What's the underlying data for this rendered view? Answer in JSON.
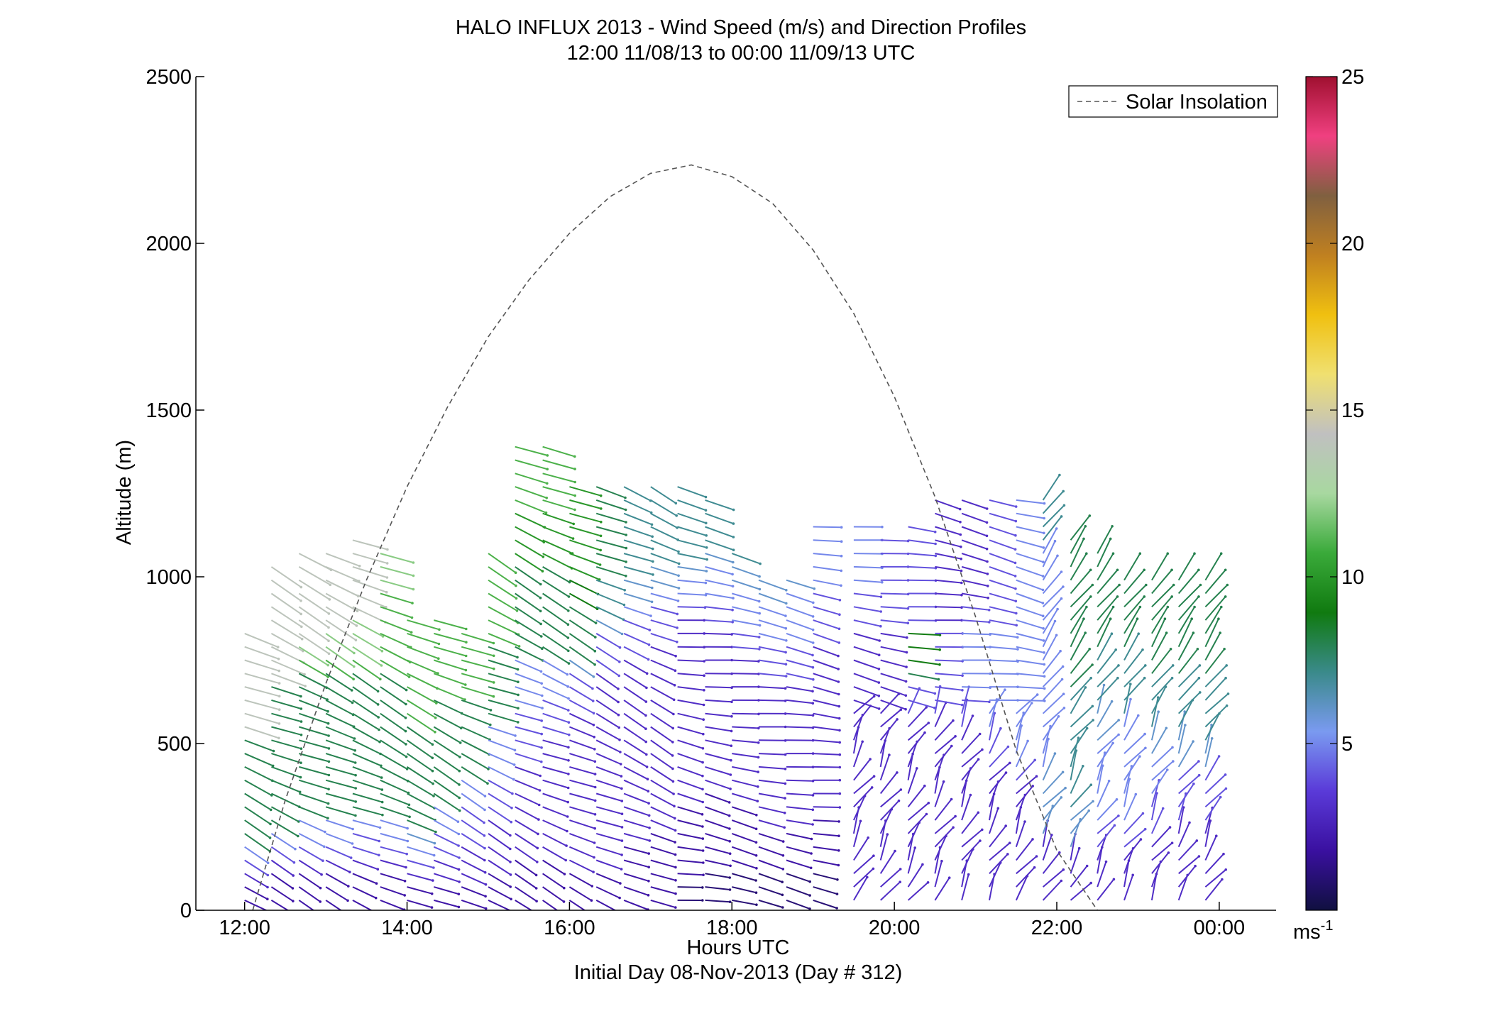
{
  "chart_data": {
    "type": "wind-barb profile",
    "title": "HALO INFLUX 2013 - Wind Speed (m/s) and Direction Profiles",
    "subtitle": "12:00 11/08/13 to 00:00 11/09/13  UTC",
    "xlabel": "Hours UTC",
    "xlabel2": "Initial Day 08-Nov-2013 (Day # 312)",
    "ylabel": "Altitude (m)",
    "xlim": [
      11.4,
      24.7
    ],
    "ylim": [
      0,
      2500
    ],
    "x_ticks": [
      12,
      14,
      16,
      18,
      20,
      22,
      24
    ],
    "x_tick_labels": [
      "12:00",
      "14:00",
      "16:00",
      "18:00",
      "20:00",
      "22:00",
      "00:00"
    ],
    "y_ticks": [
      0,
      500,
      1000,
      1500,
      2000,
      2500
    ],
    "y_tick_labels": [
      "0",
      "500",
      "1000",
      "1500",
      "2000",
      "2500"
    ],
    "legend": {
      "label": "Solar Insolation",
      "placement": "top-right",
      "line_color": "#555555",
      "line_style": "dashed"
    },
    "colorbar": {
      "range": [
        0,
        25
      ],
      "ticks": [
        5,
        10,
        15,
        20,
        25
      ],
      "tick_labels": [
        "5",
        "10",
        "15",
        "20",
        "25"
      ],
      "unit_label": "ms",
      "unit_superscript": "-1",
      "colormap": [
        "#101040",
        "#3a10a0",
        "#5a3ad8",
        "#7a9af0",
        "#3a8a8a",
        "#107a10",
        "#3aaa3a",
        "#a8d8a0",
        "#c0c0c0",
        "#f0e070",
        "#f0c010",
        "#c08020",
        "#806040",
        "#f04080",
        "#a01030"
      ]
    },
    "solar_insolation": {
      "x": [
        12.1,
        12.5,
        13.0,
        13.5,
        14.0,
        14.5,
        15.0,
        15.5,
        16.0,
        16.5,
        17.0,
        17.5,
        18.0,
        18.5,
        19.0,
        19.5,
        20.0,
        20.5,
        21.0,
        21.5,
        22.0,
        22.5,
        22.9
      ],
      "y": [
        0,
        330,
        680,
        990,
        1270,
        1510,
        1720,
        1890,
        2030,
        2140,
        2210,
        2235,
        2200,
        2120,
        1980,
        1790,
        1540,
        1240,
        880,
        480,
        180,
        0,
        -60
      ]
    },
    "profile_times": [
      12.0,
      12.33,
      12.67,
      13.0,
      13.33,
      13.67,
      14.0,
      14.33,
      14.67,
      15.0,
      15.33,
      15.67,
      16.0,
      16.33,
      16.67,
      17.0,
      17.33,
      17.67,
      18.0,
      18.33,
      18.67,
      19.0,
      19.5,
      19.83,
      20.17,
      20.5,
      20.83,
      21.17,
      21.5,
      21.83,
      22.17,
      22.5,
      22.83,
      23.17,
      23.5,
      23.83
    ],
    "profile_top_altitudes": [
      830,
      1050,
      1090,
      1100,
      1130,
      1080,
      900,
      880,
      860,
      1100,
      1400,
      1400,
      1300,
      1290,
      1280,
      1270,
      1280,
      1260,
      1100,
      1010,
      1000,
      1170,
      1150,
      1140,
      1150,
      1250,
      1250,
      1230,
      1250,
      1250,
      1140,
      1070,
      1020,
      1010,
      1010,
      1010
    ],
    "wind_speed_ms": [
      [
        2,
        2,
        3,
        4,
        5,
        8,
        8,
        8,
        8,
        8,
        8,
        8,
        8,
        8,
        14,
        14,
        14,
        14,
        14,
        14,
        14,
        14,
        14
      ],
      [
        2,
        2,
        3,
        4,
        5,
        8,
        8,
        8,
        8,
        8,
        8,
        8,
        8,
        8,
        14,
        14,
        14,
        14,
        14,
        14,
        14,
        14,
        14
      ],
      [
        2,
        2,
        3,
        4,
        5,
        8,
        8,
        8,
        8,
        8,
        8,
        8,
        8,
        8,
        11,
        12,
        14,
        14,
        14,
        14,
        14,
        14,
        14
      ],
      [
        2,
        2,
        3,
        4,
        5,
        8,
        8,
        8,
        8,
        8,
        8,
        8,
        8,
        8,
        11,
        12,
        12,
        14,
        14,
        14,
        14,
        14,
        14
      ],
      [
        2,
        2,
        3,
        4,
        5,
        8,
        8,
        8,
        8,
        8,
        8,
        8,
        8,
        8,
        11,
        12,
        12,
        14,
        14,
        14,
        14,
        14,
        14
      ],
      [
        2,
        2,
        3,
        4,
        5,
        8,
        8,
        8,
        8,
        8,
        8,
        8,
        8,
        8,
        11,
        11,
        11,
        11,
        11,
        12,
        12,
        12,
        12
      ],
      [
        2,
        2,
        3,
        4,
        5,
        6,
        8,
        8,
        8,
        8,
        8,
        8,
        8,
        8,
        11,
        11,
        11,
        11,
        11,
        11,
        11,
        11,
        11
      ],
      [
        2,
        2,
        3,
        3,
        4,
        4,
        5,
        5,
        8,
        8,
        8,
        8,
        8,
        8,
        8,
        8,
        11,
        11,
        11,
        11,
        11,
        11,
        11
      ],
      [
        2,
        2,
        3,
        3,
        3,
        4,
        4,
        4,
        5,
        5,
        8,
        8,
        8,
        8,
        8,
        8,
        11,
        11,
        11,
        11,
        11,
        11,
        11
      ],
      [
        2,
        2,
        3,
        3,
        3,
        4,
        4,
        4,
        5,
        5,
        5,
        8,
        8,
        8,
        8,
        8,
        11,
        11,
        11,
        11,
        11,
        11,
        11
      ],
      [
        2,
        2,
        3,
        3,
        3,
        3,
        3,
        4,
        4,
        5,
        5,
        5,
        8,
        8,
        8,
        8,
        10,
        10,
        10,
        11,
        11,
        11,
        11
      ],
      [
        2,
        2,
        3,
        3,
        3,
        3,
        3,
        3,
        4,
        4,
        5,
        5,
        8,
        8,
        8,
        8,
        10,
        10,
        10,
        11,
        11,
        11,
        11
      ],
      [
        2,
        2,
        3,
        3,
        3,
        3,
        3,
        3,
        3,
        3,
        4,
        4,
        6,
        8,
        8,
        8,
        9,
        10,
        10,
        10,
        10,
        10,
        10
      ],
      [
        2,
        2,
        3,
        3,
        3,
        3,
        3,
        3,
        3,
        3,
        3,
        3,
        4,
        4,
        6,
        7,
        7,
        8,
        8,
        8,
        8,
        8,
        8
      ],
      [
        2,
        2,
        2,
        3,
        3,
        3,
        3,
        3,
        3,
        3,
        3,
        3,
        3,
        4,
        4,
        5,
        6,
        7,
        7,
        7,
        7,
        7,
        7
      ],
      [
        2,
        2,
        2,
        2,
        3,
        3,
        3,
        3,
        3,
        3,
        3,
        3,
        3,
        3,
        4,
        4,
        5,
        6,
        7,
        7,
        7,
        7,
        7
      ],
      [
        1,
        2,
        2,
        2,
        2,
        3,
        3,
        3,
        3,
        3,
        3,
        3,
        3,
        3,
        3,
        4,
        5,
        6,
        7,
        7,
        7,
        7,
        7
      ],
      [
        1,
        1,
        2,
        2,
        2,
        2,
        3,
        3,
        3,
        3,
        3,
        3,
        3,
        3,
        3,
        4,
        5,
        5,
        6,
        7,
        7,
        7,
        7
      ],
      [
        1,
        1,
        2,
        2,
        2,
        2,
        3,
        3,
        3,
        3,
        3,
        3,
        3,
        3,
        3,
        4,
        4,
        5,
        5,
        6,
        6,
        7,
        7
      ],
      [
        1,
        1,
        2,
        2,
        2,
        3,
        3,
        3,
        3,
        3,
        3,
        3,
        3,
        3,
        3,
        4,
        4,
        5,
        5,
        5,
        6,
        6,
        6
      ],
      [
        1,
        1,
        2,
        2,
        2,
        3,
        3,
        3,
        3,
        3,
        3,
        3,
        3,
        3,
        3,
        4,
        4,
        5,
        5,
        5,
        5,
        6,
        6
      ],
      [
        1,
        1,
        2,
        2,
        2,
        3,
        3,
        3,
        3,
        3,
        3,
        3,
        3,
        3,
        3,
        4,
        4,
        4,
        5,
        5,
        5,
        5,
        5
      ],
      [
        3,
        3,
        3,
        3,
        3,
        3,
        3,
        3,
        3,
        3,
        3,
        3,
        3,
        3,
        3,
        3,
        4,
        4,
        4,
        5,
        5,
        5,
        5
      ],
      [
        3,
        3,
        3,
        3,
        3,
        3,
        3,
        3,
        3,
        3,
        3,
        3,
        3,
        3,
        3,
        3,
        4,
        4,
        4,
        4,
        4,
        4,
        4
      ],
      [
        3,
        3,
        3,
        3,
        3,
        3,
        3,
        3,
        3,
        3,
        3,
        4,
        4,
        8,
        9,
        9,
        4,
        4,
        4,
        4,
        4,
        4,
        4
      ],
      [
        3,
        3,
        3,
        3,
        3,
        3,
        3,
        3,
        3,
        3,
        4,
        4,
        4,
        4,
        4,
        3,
        3,
        3,
        3,
        3,
        3,
        3,
        3
      ],
      [
        3,
        3,
        3,
        3,
        3,
        3,
        3,
        3,
        3,
        4,
        4,
        5,
        5,
        5,
        5,
        4,
        3,
        3,
        3,
        3,
        3,
        3,
        3
      ],
      [
        3,
        3,
        3,
        3,
        3,
        3,
        3,
        4,
        4,
        5,
        5,
        5,
        5,
        5,
        5,
        4,
        4,
        4,
        4,
        4,
        4,
        4,
        4
      ],
      [
        3,
        3,
        3,
        3,
        3,
        3,
        4,
        5,
        5,
        5,
        5,
        5,
        5,
        5,
        5,
        5,
        5,
        5,
        5,
        5,
        5,
        5,
        5
      ],
      [
        3,
        3,
        3,
        6,
        6,
        6,
        6,
        5,
        5,
        5,
        5,
        5,
        5,
        5,
        5,
        5,
        5,
        5,
        5,
        7,
        7,
        7,
        7
      ],
      [
        3,
        3,
        3,
        6,
        6,
        7,
        7,
        7,
        7,
        7,
        7,
        7,
        8,
        8,
        8,
        8,
        8,
        8,
        8,
        8,
        8,
        8,
        8
      ],
      [
        3,
        3,
        3,
        4,
        4,
        5,
        5,
        5,
        5,
        5,
        6,
        6,
        7,
        7,
        7,
        7,
        8,
        8,
        8,
        8,
        8,
        8,
        8
      ],
      [
        3,
        3,
        3,
        4,
        4,
        5,
        5,
        5,
        5,
        5,
        5,
        5,
        7,
        7,
        7,
        7,
        8,
        8,
        8,
        8,
        8,
        8,
        8
      ],
      [
        3,
        3,
        3,
        3,
        4,
        4,
        4,
        5,
        5,
        6,
        6,
        7,
        7,
        7,
        7,
        8,
        8,
        8,
        8,
        8,
        8,
        8,
        8
      ],
      [
        3,
        3,
        3,
        3,
        3,
        4,
        4,
        4,
        6,
        6,
        6,
        7,
        7,
        7,
        7,
        8,
        8,
        8,
        8,
        8,
        8,
        8,
        8
      ],
      [
        3,
        3,
        3,
        3,
        3,
        4,
        4,
        4,
        6,
        6,
        7,
        7,
        7,
        7,
        7,
        8,
        8,
        8,
        8,
        8,
        8,
        8,
        8
      ]
    ]
  }
}
